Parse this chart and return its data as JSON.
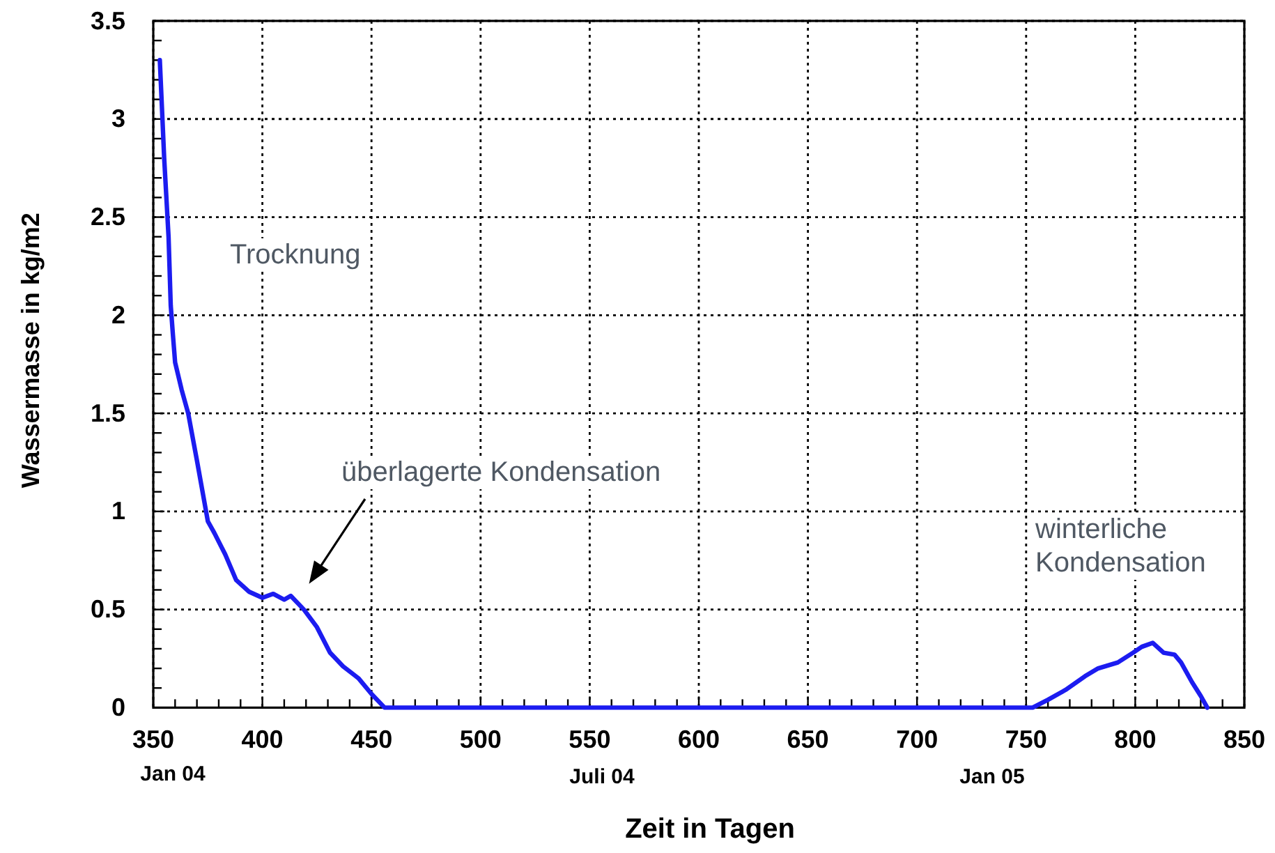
{
  "chart_data": {
    "type": "line",
    "xlabel": "Zeit in Tagen",
    "ylabel": "Wassermasse in kg/m2",
    "x": [
      353,
      354,
      355,
      356,
      357,
      358,
      359,
      360,
      363,
      366,
      370,
      375,
      378,
      383,
      388,
      394,
      400,
      405,
      410,
      413,
      419,
      425,
      431,
      437,
      444,
      450,
      456,
      500,
      550,
      600,
      650,
      700,
      753,
      760,
      768,
      777,
      783,
      792,
      799,
      803,
      808,
      813,
      818,
      821,
      826,
      830,
      833
    ],
    "series": [
      {
        "color": "#1c1cf0",
        "values": [
          3.3,
          3.05,
          2.8,
          2.6,
          2.4,
          2.05,
          1.9,
          1.76,
          1.62,
          1.5,
          1.26,
          0.95,
          0.89,
          0.78,
          0.65,
          0.59,
          0.56,
          0.58,
          0.55,
          0.57,
          0.5,
          0.41,
          0.28,
          0.21,
          0.15,
          0.07,
          0,
          0,
          0,
          0,
          0,
          0,
          0,
          0.04,
          0.09,
          0.16,
          0.2,
          0.23,
          0.28,
          0.31,
          0.33,
          0.28,
          0.27,
          0.23,
          0.13,
          0.06,
          0
        ]
      }
    ],
    "xlim": [
      350,
      850
    ],
    "xticks": [
      350,
      {
        "value": 360,
        "label": null
      },
      {
        "value": 370,
        "label": null
      },
      {
        "value": 380,
        "label": null
      },
      {
        "value": 390,
        "label": null
      },
      400,
      {
        "value": 410,
        "label": null
      },
      {
        "value": 420,
        "label": null
      },
      {
        "value": 430,
        "label": null
      },
      {
        "value": 440,
        "label": null
      },
      450,
      {
        "value": 460,
        "label": null
      },
      {
        "value": 470,
        "label": null
      },
      {
        "value": 480,
        "label": null
      },
      {
        "value": 490,
        "label": null
      },
      500,
      {
        "value": 510,
        "label": null
      },
      {
        "value": 520,
        "label": null
      },
      {
        "value": 530,
        "label": null
      },
      {
        "value": 540,
        "label": null
      },
      550,
      {
        "value": 560,
        "label": null
      },
      {
        "value": 570,
        "label": null
      },
      {
        "value": 580,
        "label": null
      },
      {
        "value": 590,
        "label": null
      },
      600,
      {
        "value": 610,
        "label": null
      },
      {
        "value": 620,
        "label": null
      },
      {
        "value": 630,
        "label": null
      },
      {
        "value": 640,
        "label": null
      },
      650,
      {
        "value": 660,
        "label": null
      },
      {
        "value": 670,
        "label": null
      },
      {
        "value": 680,
        "label": null
      },
      {
        "value": 690,
        "label": null
      },
      700,
      {
        "value": 710,
        "label": null
      },
      {
        "value": 720,
        "label": null
      },
      {
        "value": 730,
        "label": null
      },
      {
        "value": 740,
        "label": null
      },
      750,
      {
        "value": 760,
        "label": null
      },
      {
        "value": 770,
        "label": null
      },
      {
        "value": 780,
        "label": null
      },
      {
        "value": 790,
        "label": null
      },
      800,
      {
        "value": 810,
        "label": null
      },
      {
        "value": 820,
        "label": null
      },
      {
        "value": 830,
        "label": null
      },
      {
        "value": 840,
        "label": null
      },
      850
    ],
    "ylim": [
      0,
      3.5
    ],
    "yticks": [
      0,
      {
        "value": 0.1,
        "label": null
      },
      {
        "value": 0.2,
        "label": null
      },
      {
        "value": 0.3,
        "label": null
      },
      {
        "value": 0.4,
        "label": null
      },
      0.5,
      {
        "value": 0.6,
        "label": null
      },
      {
        "value": 0.7,
        "label": null
      },
      {
        "value": 0.8,
        "label": null
      },
      {
        "value": 0.9,
        "label": null
      },
      1,
      {
        "value": 1.1,
        "label": null
      },
      {
        "value": 1.2,
        "label": null
      },
      {
        "value": 1.3,
        "label": null
      },
      {
        "value": 1.4,
        "label": null
      },
      1.5,
      {
        "value": 1.6,
        "label": null
      },
      {
        "value": 1.7,
        "label": null
      },
      {
        "value": 1.8,
        "label": null
      },
      {
        "value": 1.9,
        "label": null
      },
      2,
      {
        "value": 2.1,
        "label": null
      },
      {
        "value": 2.2,
        "label": null
      },
      {
        "value": 2.3,
        "label": null
      },
      {
        "value": 2.4,
        "label": null
      },
      2.5,
      {
        "value": 2.6,
        "label": null
      },
      {
        "value": 2.7,
        "label": null
      },
      {
        "value": 2.8,
        "label": null
      },
      {
        "value": 2.9,
        "label": null
      },
      3,
      {
        "value": 3.1,
        "label": null
      },
      {
        "value": 3.2,
        "label": null
      },
      {
        "value": 3.3,
        "label": null
      },
      {
        "value": 3.4,
        "label": null
      },
      3.5
    ],
    "grid": true,
    "annotations": [
      "Trocknung",
      "überlagerte Kondensation",
      "winterliche Kondensation",
      "Jan 04",
      "Juli 04",
      "Jan 05"
    ]
  }
}
